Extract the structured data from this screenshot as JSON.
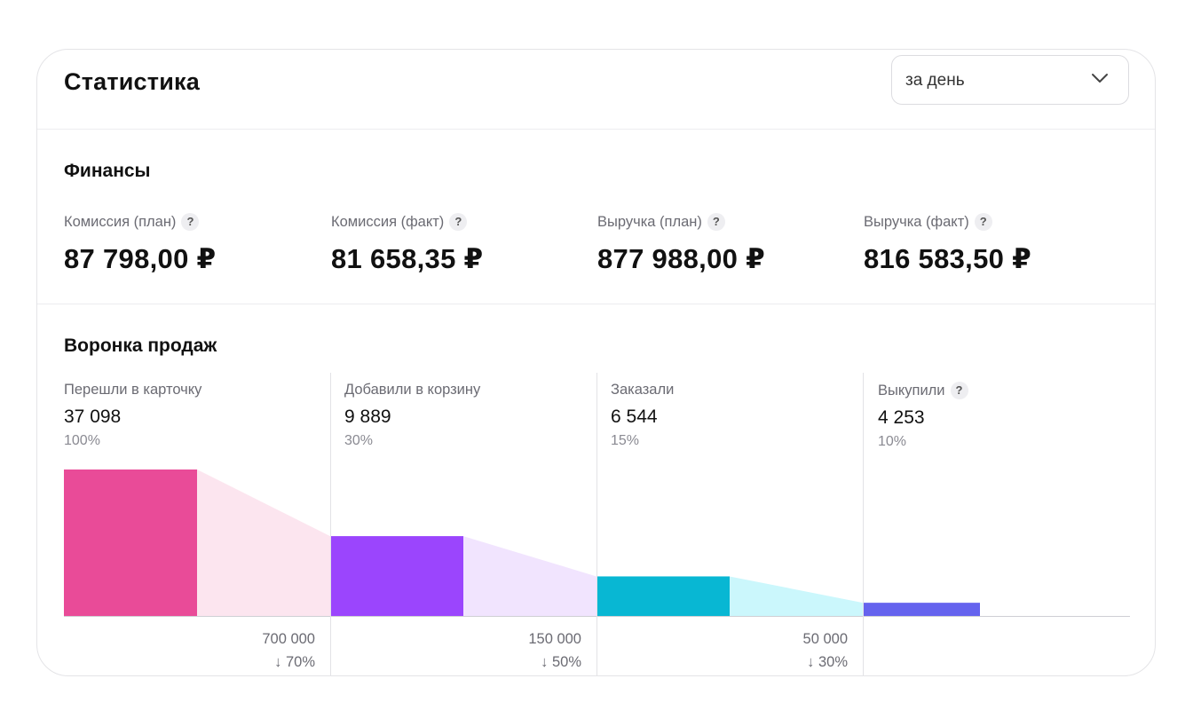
{
  "header": {
    "title": "Статистика",
    "period_select": {
      "value": "за день",
      "icon": "chevron-down-icon"
    }
  },
  "finance": {
    "title": "Финансы",
    "metrics": [
      {
        "label": "Комиссия (план)",
        "value": "87 798,00 ₽",
        "help": "?"
      },
      {
        "label": "Комиссия (факт)",
        "value": "81 658,35 ₽",
        "help": "?"
      },
      {
        "label": "Выручка (план)",
        "value": "877 988,00 ₽",
        "help": "?"
      },
      {
        "label": "Выручка (факт)",
        "value": "816 583,50 ₽",
        "help": "?"
      }
    ]
  },
  "funnel": {
    "title": "Воронка продаж",
    "stages": [
      {
        "label": "Перешли в карточку",
        "value": "37 098",
        "percent": "100%",
        "color": "#e94b98",
        "tail_color": "#fce5ef",
        "level": 1.0
      },
      {
        "label": "Добавили в корзину",
        "value": "9 889",
        "percent": "30%",
        "color": "#9b45fd",
        "tail_color": "#f1e4fe",
        "level": 0.545
      },
      {
        "label": "Заказали",
        "value": "6 544",
        "percent": "15%",
        "color": "#08b7d3",
        "tail_color": "#cbf7fc",
        "level": 0.27
      },
      {
        "label": "Выкупили",
        "value": "4 253",
        "percent": "10%",
        "help": "?",
        "color": "#6563ee",
        "level": 0.09
      }
    ],
    "drops": [
      {
        "count": "700 000",
        "percent": "↓ 70%"
      },
      {
        "count": "150 000",
        "percent": "↓ 50%"
      },
      {
        "count": "50 000",
        "percent": "↓ 30%"
      }
    ]
  }
}
